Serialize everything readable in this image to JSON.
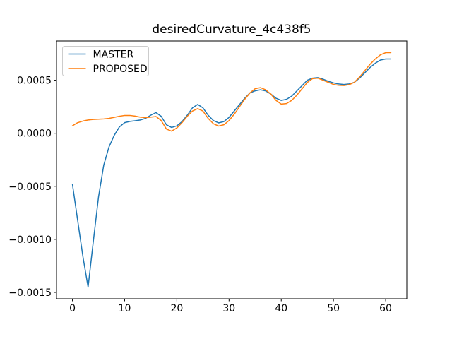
{
  "window": {
    "kind": "matplotlib-figure",
    "background": "#ffffff"
  },
  "chart_data": {
    "type": "line",
    "title": "desiredCurvature_4c438f5",
    "xlabel": "",
    "ylabel": "",
    "xlim": [
      -3.05,
      64.05
    ],
    "ylim": [
      -0.00156,
      0.00087
    ],
    "grid": false,
    "legend_position": "upper left",
    "x_ticks": {
      "values": [
        0,
        10,
        20,
        30,
        40,
        50,
        60
      ],
      "labels": [
        "0",
        "10",
        "20",
        "30",
        "40",
        "50",
        "60"
      ]
    },
    "y_ticks": {
      "values": [
        0.0005,
        0.0,
        -0.0005,
        -0.001,
        -0.0015
      ],
      "labels": [
        "0.0005",
        "0.0000",
        "−0.0005",
        "−0.0010",
        "−0.0015"
      ]
    },
    "x": [
      0,
      1,
      2,
      3,
      4,
      5,
      6,
      7,
      8,
      9,
      10,
      11,
      12,
      13,
      14,
      15,
      16,
      17,
      18,
      19,
      20,
      21,
      22,
      23,
      24,
      25,
      26,
      27,
      28,
      29,
      30,
      31,
      32,
      33,
      34,
      35,
      36,
      37,
      38,
      39,
      40,
      41,
      42,
      43,
      44,
      45,
      46,
      47,
      48,
      49,
      50,
      51,
      52,
      53,
      54,
      55,
      56,
      57,
      58,
      59,
      60,
      61
    ],
    "series": [
      {
        "name": "MASTER",
        "color": "#1f77b4",
        "values": [
          -0.00048,
          -0.00082,
          -0.00116,
          -0.00145,
          -0.00102,
          -0.0006,
          -0.0003,
          -0.00013,
          -2e-05,
          6e-05,
          0.0001,
          0.000112,
          0.000118,
          0.000125,
          0.00014,
          0.00017,
          0.000195,
          0.00016,
          8e-05,
          5.5e-05,
          7e-05,
          0.00011,
          0.00017,
          0.00024,
          0.000272,
          0.00024,
          0.00017,
          0.00012,
          9.8e-05,
          0.00011,
          0.00015,
          0.00021,
          0.00027,
          0.00033,
          0.00038,
          0.0004,
          0.00041,
          0.0004,
          0.00037,
          0.00033,
          0.00031,
          0.00032,
          0.00035,
          0.0004,
          0.00045,
          0.0005,
          0.00052,
          0.000525,
          0.00051,
          0.00049,
          0.000475,
          0.000465,
          0.00046,
          0.000465,
          0.00048,
          0.00052,
          0.00057,
          0.00062,
          0.00066,
          0.00069,
          0.0007,
          0.0007
        ]
      },
      {
        "name": "PROPOSED",
        "color": "#ff7f0e",
        "values": [
          7e-05,
          0.0001,
          0.000115,
          0.000125,
          0.00013,
          0.000133,
          0.000135,
          0.00014,
          0.00015,
          0.00016,
          0.000168,
          0.000168,
          0.000162,
          0.000152,
          0.000148,
          0.000152,
          0.000158,
          0.00012,
          4e-05,
          2e-05,
          5e-05,
          0.0001,
          0.00016,
          0.00021,
          0.000232,
          0.00021,
          0.00014,
          9e-05,
          6.8e-05,
          8e-05,
          0.00012,
          0.00018,
          0.00025,
          0.00032,
          0.00038,
          0.00042,
          0.00043,
          0.00041,
          0.00037,
          0.00031,
          0.000275,
          0.00028,
          0.00031,
          0.00036,
          0.00042,
          0.00048,
          0.000515,
          0.00052,
          0.0005,
          0.00048,
          0.00046,
          0.000452,
          0.00045,
          0.000458,
          0.00048,
          0.00053,
          0.00059,
          0.00065,
          0.0007,
          0.00074,
          0.00076,
          0.00076
        ]
      }
    ],
    "styles": {
      "line_width": 1.5,
      "spine_color": "#000000",
      "legend_border_color": "#cccccc",
      "legend_background": "#ffffff"
    }
  }
}
